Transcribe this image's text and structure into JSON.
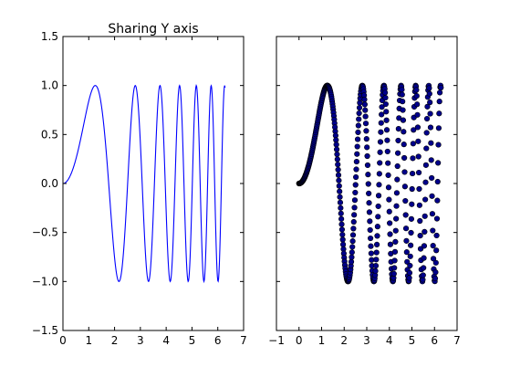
{
  "figure": {
    "title": "Sharing Y axis",
    "sharey": true
  },
  "colors": {
    "line": "#0000ff",
    "marker_fill": "#00008b",
    "marker_edge": "#000000",
    "axes": "#000000",
    "background": "#ffffff"
  },
  "chart_data": [
    {
      "type": "line",
      "title": "Sharing Y axis",
      "function": "y = sin(x^2)",
      "x_range": [
        0,
        6.2832
      ],
      "n_points": 400,
      "xlim": [
        0,
        7
      ],
      "ylim": [
        -1.5,
        1.5
      ],
      "xticks": [
        "0",
        "1",
        "2",
        "3",
        "4",
        "5",
        "6",
        "7"
      ],
      "yticks": [
        "−1.5",
        "−1.0",
        "−0.5",
        "0.0",
        "0.5",
        "1.0",
        "1.5"
      ],
      "grid": false
    },
    {
      "type": "scatter",
      "title": "",
      "function": "y = sin(x^2)",
      "x_range": [
        0,
        6.2832
      ],
      "n_points": 400,
      "xlim": [
        -1,
        7
      ],
      "ylim": [
        -1.5,
        1.5
      ],
      "xticks": [
        "−1",
        "0",
        "1",
        "2",
        "3",
        "4",
        "5",
        "6",
        "7"
      ],
      "yticks": [],
      "grid": false
    }
  ]
}
